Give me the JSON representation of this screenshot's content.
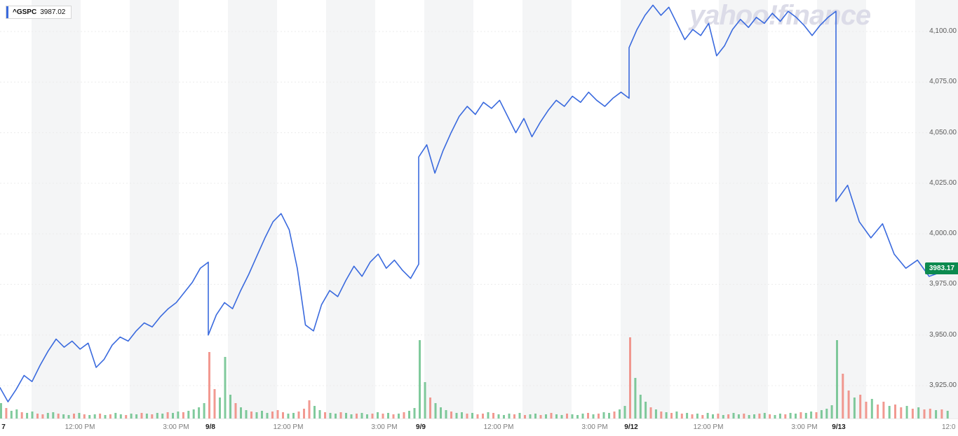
{
  "watermark": {
    "text": "yahoo!finance"
  },
  "legend": {
    "symbol": "^GSPC",
    "value": "3987.02"
  },
  "last_price_badge": {
    "value": "3983.17"
  },
  "chart_data": {
    "type": "line",
    "symbol": "^GSPC",
    "title": "S&P 500 (^GSPC) intraday price with volume, Sep 7 - Sep 13",
    "legend_price": 3987.02,
    "last_price": 3983.17,
    "line_color": "#3a6ade",
    "volume_up_color": "#60bd83",
    "volume_down_color": "#ef7f76",
    "badge_color": "#0c8a4f",
    "ylim": [
      3912,
      4122
    ],
    "grid": true,
    "legend_position": "top-left",
    "y_ticks": [
      {
        "value": 4100,
        "label": "4,100.00"
      },
      {
        "value": 4075,
        "label": "4,075.00"
      },
      {
        "value": 4050,
        "label": "4,050.00"
      },
      {
        "value": 4025,
        "label": "4,025.00"
      },
      {
        "value": 4000,
        "label": "4,000.00"
      },
      {
        "value": 3975,
        "label": "3,975.00"
      },
      {
        "value": 3950,
        "label": "3,950.00"
      },
      {
        "value": 3925,
        "label": "3,925.00"
      }
    ],
    "x_labels": [
      {
        "text": "7",
        "type": "day"
      },
      {
        "text": "12:00 PM",
        "type": "time"
      },
      {
        "text": "3:00 PM",
        "type": "time"
      },
      {
        "text": "9/8",
        "type": "day"
      },
      {
        "text": "12:00 PM",
        "type": "time"
      },
      {
        "text": "3:00 PM",
        "type": "time"
      },
      {
        "text": "9/9",
        "type": "day"
      },
      {
        "text": "12:00 PM",
        "type": "time"
      },
      {
        "text": "3:00 PM",
        "type": "time"
      },
      {
        "text": "9/12",
        "type": "day"
      },
      {
        "text": "12:00 PM",
        "type": "time"
      },
      {
        "text": "3:00 PM",
        "type": "time"
      },
      {
        "text": "9/13",
        "type": "day"
      },
      {
        "text": "12:0",
        "type": "time"
      }
    ],
    "sessions": [
      {
        "date": "9/7",
        "prices": [
          3924,
          3917,
          3923,
          3930,
          3927,
          3935,
          3942,
          3948,
          3944,
          3947,
          3943,
          3946,
          3934,
          3938,
          3945,
          3949,
          3947,
          3952,
          3956,
          3954,
          3959,
          3963,
          3966,
          3971,
          3976,
          3983,
          3986
        ],
        "volumes": [
          [
            22,
            "u"
          ],
          [
            15,
            "d"
          ],
          [
            11,
            "u"
          ],
          [
            13,
            "u"
          ],
          [
            9,
            "d"
          ],
          [
            8,
            "u"
          ],
          [
            10,
            "u"
          ],
          [
            7,
            "d"
          ],
          [
            6,
            "d"
          ],
          [
            8,
            "u"
          ],
          [
            9,
            "u"
          ],
          [
            7,
            "d"
          ],
          [
            6,
            "u"
          ],
          [
            5,
            "u"
          ],
          [
            7,
            "d"
          ],
          [
            8,
            "u"
          ],
          [
            6,
            "d"
          ],
          [
            5,
            "u"
          ],
          [
            6,
            "u"
          ],
          [
            7,
            "d"
          ],
          [
            5,
            "u"
          ],
          [
            6,
            "d"
          ],
          [
            8,
            "u"
          ],
          [
            6,
            "u"
          ],
          [
            5,
            "d"
          ],
          [
            7,
            "u"
          ],
          [
            6,
            "u"
          ],
          [
            8,
            "d"
          ],
          [
            7,
            "u"
          ],
          [
            6,
            "d"
          ],
          [
            8,
            "u"
          ],
          [
            7,
            "u"
          ],
          [
            9,
            "d"
          ],
          [
            8,
            "u"
          ],
          [
            10,
            "u"
          ],
          [
            9,
            "d"
          ],
          [
            11,
            "u"
          ],
          [
            13,
            "u"
          ],
          [
            16,
            "u"
          ],
          [
            22,
            "u"
          ]
        ]
      },
      {
        "date": "9/8",
        "prices": [
          3950,
          3960,
          3966,
          3963,
          3972,
          3980,
          3989,
          3998,
          4006,
          4010,
          4002,
          3983,
          3955,
          3952,
          3965,
          3972,
          3969,
          3977,
          3984,
          3979,
          3986,
          3990,
          3983,
          3987,
          3982,
          3978,
          3985
        ],
        "volumes": [
          [
            95,
            "d"
          ],
          [
            42,
            "d"
          ],
          [
            30,
            "u"
          ],
          [
            88,
            "u"
          ],
          [
            34,
            "u"
          ],
          [
            22,
            "d"
          ],
          [
            16,
            "u"
          ],
          [
            12,
            "u"
          ],
          [
            10,
            "d"
          ],
          [
            9,
            "u"
          ],
          [
            11,
            "u"
          ],
          [
            8,
            "u"
          ],
          [
            10,
            "d"
          ],
          [
            12,
            "d"
          ],
          [
            9,
            "d"
          ],
          [
            7,
            "u"
          ],
          [
            8,
            "u"
          ],
          [
            10,
            "d"
          ],
          [
            14,
            "d"
          ],
          [
            26,
            "d"
          ],
          [
            18,
            "u"
          ],
          [
            12,
            "u"
          ],
          [
            9,
            "d"
          ],
          [
            8,
            "u"
          ],
          [
            7,
            "u"
          ],
          [
            9,
            "d"
          ],
          [
            8,
            "u"
          ],
          [
            6,
            "u"
          ],
          [
            7,
            "d"
          ],
          [
            8,
            "u"
          ],
          [
            6,
            "u"
          ],
          [
            7,
            "d"
          ],
          [
            9,
            "u"
          ],
          [
            7,
            "d"
          ],
          [
            8,
            "u"
          ],
          [
            6,
            "d"
          ],
          [
            7,
            "u"
          ],
          [
            9,
            "d"
          ],
          [
            11,
            "u"
          ],
          [
            15,
            "u"
          ]
        ]
      },
      {
        "date": "9/9",
        "prices": [
          4038,
          4044,
          4030,
          4041,
          4050,
          4058,
          4063,
          4059,
          4065,
          4062,
          4066,
          4058,
          4050,
          4057,
          4048,
          4055,
          4061,
          4066,
          4063,
          4068,
          4065,
          4070,
          4066,
          4063,
          4067,
          4070,
          4067
        ],
        "volumes": [
          [
            112,
            "u"
          ],
          [
            52,
            "u"
          ],
          [
            30,
            "d"
          ],
          [
            22,
            "u"
          ],
          [
            16,
            "u"
          ],
          [
            12,
            "u"
          ],
          [
            10,
            "d"
          ],
          [
            8,
            "u"
          ],
          [
            9,
            "u"
          ],
          [
            7,
            "d"
          ],
          [
            8,
            "u"
          ],
          [
            6,
            "d"
          ],
          [
            7,
            "d"
          ],
          [
            9,
            "u"
          ],
          [
            8,
            "d"
          ],
          [
            6,
            "u"
          ],
          [
            5,
            "u"
          ],
          [
            7,
            "u"
          ],
          [
            6,
            "d"
          ],
          [
            8,
            "u"
          ],
          [
            5,
            "d"
          ],
          [
            6,
            "u"
          ],
          [
            7,
            "u"
          ],
          [
            5,
            "d"
          ],
          [
            6,
            "u"
          ],
          [
            8,
            "d"
          ],
          [
            6,
            "u"
          ],
          [
            5,
            "u"
          ],
          [
            7,
            "d"
          ],
          [
            6,
            "u"
          ],
          [
            5,
            "u"
          ],
          [
            7,
            "u"
          ],
          [
            8,
            "d"
          ],
          [
            6,
            "u"
          ],
          [
            7,
            "d"
          ],
          [
            9,
            "u"
          ],
          [
            8,
            "u"
          ],
          [
            10,
            "d"
          ],
          [
            13,
            "u"
          ],
          [
            18,
            "u"
          ]
        ]
      },
      {
        "date": "9/12",
        "prices": [
          4092,
          4101,
          4108,
          4113,
          4108,
          4112,
          4104,
          4096,
          4101,
          4098,
          4104,
          4088,
          4093,
          4101,
          4106,
          4102,
          4107,
          4104,
          4109,
          4105,
          4110,
          4107,
          4103,
          4098,
          4103,
          4107,
          4110
        ],
        "volumes": [
          [
            116,
            "d"
          ],
          [
            58,
            "u"
          ],
          [
            34,
            "u"
          ],
          [
            24,
            "u"
          ],
          [
            16,
            "d"
          ],
          [
            13,
            "u"
          ],
          [
            10,
            "d"
          ],
          [
            9,
            "u"
          ],
          [
            8,
            "d"
          ],
          [
            10,
            "u"
          ],
          [
            7,
            "d"
          ],
          [
            8,
            "u"
          ],
          [
            6,
            "d"
          ],
          [
            7,
            "u"
          ],
          [
            5,
            "d"
          ],
          [
            8,
            "u"
          ],
          [
            6,
            "u"
          ],
          [
            7,
            "d"
          ],
          [
            5,
            "u"
          ],
          [
            6,
            "d"
          ],
          [
            8,
            "u"
          ],
          [
            6,
            "u"
          ],
          [
            7,
            "d"
          ],
          [
            5,
            "u"
          ],
          [
            6,
            "u"
          ],
          [
            7,
            "d"
          ],
          [
            8,
            "u"
          ],
          [
            6,
            "d"
          ],
          [
            5,
            "u"
          ],
          [
            7,
            "u"
          ],
          [
            6,
            "d"
          ],
          [
            8,
            "u"
          ],
          [
            7,
            "u"
          ],
          [
            9,
            "d"
          ],
          [
            8,
            "u"
          ],
          [
            10,
            "u"
          ],
          [
            9,
            "d"
          ],
          [
            12,
            "u"
          ],
          [
            14,
            "u"
          ],
          [
            19,
            "u"
          ]
        ]
      },
      {
        "date": "9/13",
        "prices": [
          4016,
          4024,
          4006,
          3998,
          4005,
          3990,
          3983,
          3987,
          3979,
          3981,
          3983.17
        ],
        "volumes": [
          [
            112,
            "u"
          ],
          [
            64,
            "d"
          ],
          [
            40,
            "d"
          ],
          [
            30,
            "u"
          ],
          [
            34,
            "d"
          ],
          [
            24,
            "d"
          ],
          [
            28,
            "u"
          ],
          [
            20,
            "d"
          ],
          [
            24,
            "d"
          ],
          [
            18,
            "u"
          ],
          [
            20,
            "d"
          ],
          [
            16,
            "d"
          ],
          [
            18,
            "u"
          ],
          [
            14,
            "d"
          ],
          [
            16,
            "u"
          ],
          [
            13,
            "d"
          ],
          [
            14,
            "d"
          ],
          [
            12,
            "u"
          ],
          [
            13,
            "d"
          ],
          [
            11,
            "u"
          ]
        ]
      }
    ]
  }
}
